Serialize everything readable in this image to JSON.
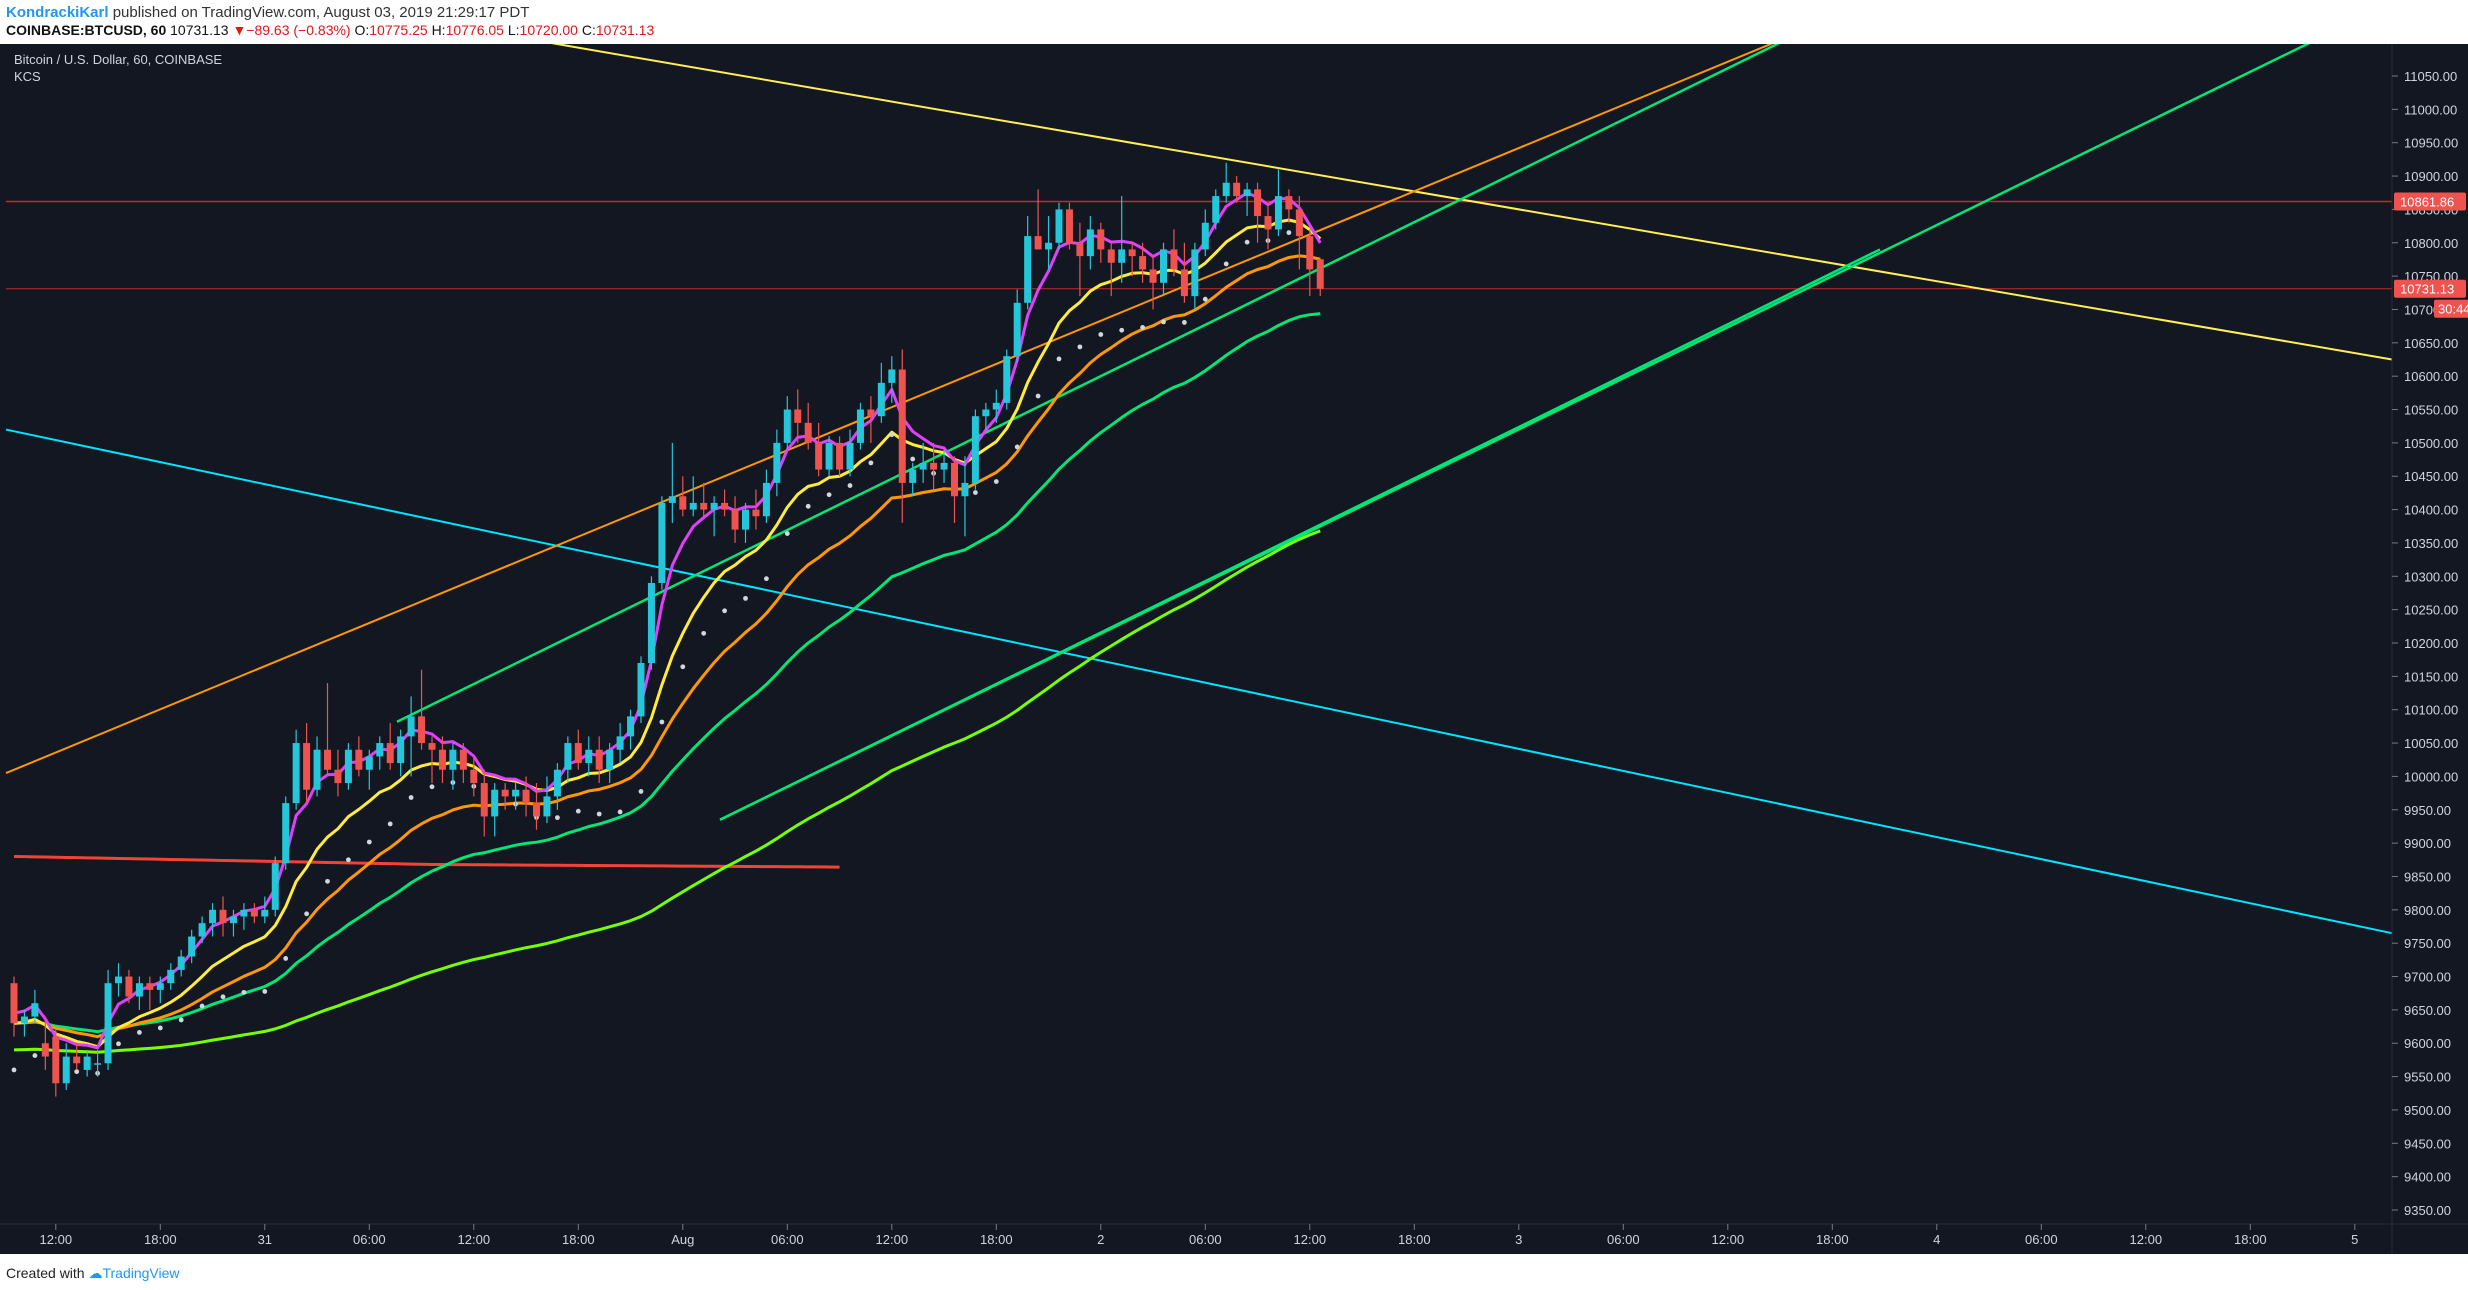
{
  "header": {
    "author": "KondrackiKarl",
    "published_text": " published on TradingView.com, August 03, 2019 21:29:17 PDT",
    "symbol": "COINBASE:BTCUSD, 60",
    "last": "10731.13",
    "arrow": "▼",
    "change": "−89.63 (−0.83%)",
    "o_label": "O:",
    "o_value": "10775.25",
    "h_label": "H:",
    "h_value": "10776.05",
    "l_label": "L:",
    "l_value": "10720.00",
    "c_label": "C:",
    "c_value": "10731.13"
  },
  "legend": {
    "title": "Bitcoin / U.S. Dollar, 60, COINBASE",
    "indicator": "KCS"
  },
  "footer": {
    "created": "Created with",
    "brand": "TradingView"
  },
  "colors": {
    "background": "#131722",
    "axis_bg": "#131722",
    "up": "#26c6da",
    "down": "#ef5350",
    "ema_fast": "#e040fb",
    "ema_mid": "#ffeb3b",
    "ema_slow": "#ff9800",
    "ema_green": "#00e676",
    "ema_green2": "#76ff03",
    "sma_red": "#f44336",
    "psar": "#cfd8dc",
    "trend_yellow": "#ffee58",
    "trend_cyan": "#00e5ff",
    "trend_orange": "#ff9800",
    "trend_green": "#00e676",
    "hline_red": "#c62828",
    "price_tag": "#ef5350"
  },
  "chart_data": {
    "type": "candlestick",
    "title": "Bitcoin / U.S. Dollar, 60, COINBASE",
    "ylim": [
      9300,
      11100
    ],
    "y_ticks": [
      9350,
      9400,
      9450,
      9500,
      9550,
      9600,
      9650,
      9700,
      9750,
      9800,
      9850,
      9900,
      9950,
      10000,
      10050,
      10100,
      10150,
      10200,
      10250,
      10300,
      10350,
      10400,
      10450,
      10500,
      10550,
      10600,
      10650,
      10700,
      10750,
      10800,
      10850,
      10900,
      10950,
      11000,
      11050
    ],
    "x_ticks": [
      {
        "label": "12:00",
        "i": 4
      },
      {
        "label": "18:00",
        "i": 14
      },
      {
        "label": "31",
        "i": 24
      },
      {
        "label": "06:00",
        "i": 34
      },
      {
        "label": "12:00",
        "i": 44
      },
      {
        "label": "18:00",
        "i": 54
      },
      {
        "label": "Aug",
        "i": 64
      },
      {
        "label": "06:00",
        "i": 74
      },
      {
        "label": "12:00",
        "i": 84
      },
      {
        "label": "18:00",
        "i": 94
      },
      {
        "label": "2",
        "i": 104
      },
      {
        "label": "06:00",
        "i": 114
      },
      {
        "label": "12:00",
        "i": 124
      },
      {
        "label": "18:00",
        "i": 134
      },
      {
        "label": "3",
        "i": 144
      },
      {
        "label": "06:00",
        "i": 154
      },
      {
        "label": "12:00",
        "i": 164
      },
      {
        "label": "18:00",
        "i": 174
      },
      {
        "label": "4",
        "i": 184
      },
      {
        "label": "06:00",
        "i": 194
      },
      {
        "label": "12:00",
        "i": 204
      },
      {
        "label": "18:00",
        "i": 214
      },
      {
        "label": "5",
        "i": 224
      }
    ],
    "candles": [
      [
        9690,
        9700,
        9610,
        9630
      ],
      [
        9630,
        9650,
        9610,
        9640
      ],
      [
        9640,
        9680,
        9630,
        9660
      ],
      [
        9600,
        9640,
        9560,
        9580
      ],
      [
        9610,
        9620,
        9520,
        9540
      ],
      [
        9540,
        9600,
        9530,
        9580
      ],
      [
        9580,
        9600,
        9560,
        9570
      ],
      [
        9560,
        9590,
        9550,
        9580
      ],
      [
        9570,
        9590,
        9550,
        9570
      ],
      [
        9570,
        9710,
        9560,
        9690
      ],
      [
        9690,
        9720,
        9670,
        9700
      ],
      [
        9700,
        9710,
        9660,
        9670
      ],
      [
        9670,
        9700,
        9650,
        9690
      ],
      [
        9690,
        9700,
        9650,
        9680
      ],
      [
        9680,
        9700,
        9660,
        9690
      ],
      [
        9690,
        9720,
        9680,
        9710
      ],
      [
        9710,
        9740,
        9700,
        9730
      ],
      [
        9730,
        9770,
        9720,
        9760
      ],
      [
        9760,
        9790,
        9750,
        9780
      ],
      [
        9780,
        9810,
        9760,
        9800
      ],
      [
        9800,
        9820,
        9760,
        9780
      ],
      [
        9780,
        9800,
        9760,
        9790
      ],
      [
        9790,
        9810,
        9770,
        9800
      ],
      [
        9800,
        9810,
        9780,
        9790
      ],
      [
        9790,
        9820,
        9780,
        9800
      ],
      [
        9800,
        9880,
        9790,
        9870
      ],
      [
        9870,
        9970,
        9860,
        9960
      ],
      [
        9960,
        10070,
        9950,
        10050
      ],
      [
        10050,
        10080,
        9960,
        9980
      ],
      [
        9980,
        10060,
        9970,
        10040
      ],
      [
        10040,
        10140,
        10000,
        10010
      ],
      [
        10010,
        10040,
        9970,
        9990
      ],
      [
        9990,
        10050,
        9980,
        10040
      ],
      [
        10040,
        10060,
        10000,
        10010
      ],
      [
        10010,
        10040,
        9980,
        10030
      ],
      [
        10030,
        10060,
        10010,
        10050
      ],
      [
        10050,
        10080,
        10010,
        10020
      ],
      [
        10020,
        10070,
        10000,
        10060
      ],
      [
        10060,
        10120,
        10000,
        10090
      ],
      [
        10090,
        10160,
        10040,
        10050
      ],
      [
        10050,
        10060,
        9990,
        10040
      ],
      [
        10040,
        10060,
        9990,
        10010
      ],
      [
        10010,
        10050,
        9980,
        10040
      ],
      [
        10040,
        10050,
        9990,
        10010
      ],
      [
        10010,
        10030,
        9970,
        9990
      ],
      [
        9990,
        10010,
        9910,
        9940
      ],
      [
        9940,
        9990,
        9910,
        9980
      ],
      [
        9980,
        9990,
        9950,
        9970
      ],
      [
        9970,
        9990,
        9950,
        9980
      ],
      [
        9980,
        10000,
        9940,
        9960
      ],
      [
        9960,
        9990,
        9920,
        9940
      ],
      [
        9940,
        10000,
        9930,
        9970
      ],
      [
        9970,
        10020,
        9950,
        10010
      ],
      [
        10010,
        10060,
        9990,
        10050
      ],
      [
        10050,
        10070,
        10010,
        10020
      ],
      [
        10020,
        10060,
        10000,
        10040
      ],
      [
        10040,
        10060,
        9990,
        10010
      ],
      [
        10010,
        10050,
        9990,
        10040
      ],
      [
        10040,
        10080,
        10020,
        10060
      ],
      [
        10060,
        10100,
        10040,
        10090
      ],
      [
        10090,
        10180,
        10080,
        10170
      ],
      [
        10170,
        10300,
        10160,
        10290
      ],
      [
        10290,
        10420,
        10280,
        10410
      ],
      [
        10410,
        10500,
        10380,
        10420
      ],
      [
        10420,
        10450,
        10390,
        10400
      ],
      [
        10400,
        10450,
        10390,
        10410
      ],
      [
        10410,
        10440,
        10390,
        10400
      ],
      [
        10400,
        10420,
        10360,
        10410
      ],
      [
        10410,
        10430,
        10390,
        10400
      ],
      [
        10400,
        10420,
        10350,
        10370
      ],
      [
        10370,
        10410,
        10350,
        10400
      ],
      [
        10400,
        10430,
        10370,
        10390
      ],
      [
        10390,
        10460,
        10380,
        10440
      ],
      [
        10440,
        10520,
        10420,
        10500
      ],
      [
        10500,
        10570,
        10490,
        10550
      ],
      [
        10550,
        10580,
        10500,
        10530
      ],
      [
        10530,
        10560,
        10490,
        10500
      ],
      [
        10500,
        10530,
        10450,
        10460
      ],
      [
        10460,
        10510,
        10450,
        10500
      ],
      [
        10500,
        10510,
        10450,
        10460
      ],
      [
        10460,
        10520,
        10450,
        10500
      ],
      [
        10500,
        10560,
        10490,
        10550
      ],
      [
        10550,
        10570,
        10500,
        10540
      ],
      [
        10540,
        10620,
        10530,
        10590
      ],
      [
        10590,
        10630,
        10560,
        10610
      ],
      [
        10610,
        10640,
        10380,
        10440
      ],
      [
        10440,
        10470,
        10420,
        10460
      ],
      [
        10460,
        10500,
        10440,
        10470
      ],
      [
        10470,
        10500,
        10430,
        10460
      ],
      [
        10460,
        10490,
        10440,
        10470
      ],
      [
        10470,
        10480,
        10380,
        10420
      ],
      [
        10420,
        10480,
        10360,
        10440
      ],
      [
        10440,
        10550,
        10430,
        10540
      ],
      [
        10540,
        10560,
        10520,
        10550
      ],
      [
        10550,
        10580,
        10530,
        10560
      ],
      [
        10560,
        10640,
        10550,
        10630
      ],
      [
        10630,
        10730,
        10620,
        10710
      ],
      [
        10710,
        10840,
        10700,
        10810
      ],
      [
        10810,
        10880,
        10790,
        10790
      ],
      [
        10790,
        10840,
        10760,
        10800
      ],
      [
        10800,
        10860,
        10790,
        10850
      ],
      [
        10850,
        10860,
        10790,
        10800
      ],
      [
        10800,
        10830,
        10720,
        10780
      ],
      [
        10780,
        10840,
        10760,
        10820
      ],
      [
        10820,
        10830,
        10770,
        10790
      ],
      [
        10790,
        10800,
        10720,
        10770
      ],
      [
        10770,
        10870,
        10740,
        10790
      ],
      [
        10790,
        10800,
        10750,
        10780
      ],
      [
        10780,
        10800,
        10740,
        10760
      ],
      [
        10760,
        10780,
        10700,
        10740
      ],
      [
        10740,
        10800,
        10720,
        10790
      ],
      [
        10790,
        10820,
        10750,
        10760
      ],
      [
        10760,
        10800,
        10710,
        10720
      ],
      [
        10720,
        10800,
        10700,
        10790
      ],
      [
        10790,
        10850,
        10780,
        10830
      ],
      [
        10830,
        10880,
        10820,
        10870
      ],
      [
        10870,
        10920,
        10860,
        10890
      ],
      [
        10890,
        10900,
        10860,
        10870
      ],
      [
        10870,
        10890,
        10840,
        10880
      ],
      [
        10880,
        10890,
        10800,
        10840
      ],
      [
        10840,
        10860,
        10790,
        10820
      ],
      [
        10820,
        10910,
        10810,
        10870
      ],
      [
        10870,
        10880,
        10830,
        10850
      ],
      [
        10850,
        10870,
        10760,
        10810
      ],
      [
        10810,
        10820,
        10720,
        10760
      ],
      [
        10775.25,
        10776.05,
        10720,
        10731.13
      ]
    ],
    "current_price": 10731.13,
    "countdown": "30:44",
    "hline_price": 10861.86
  }
}
